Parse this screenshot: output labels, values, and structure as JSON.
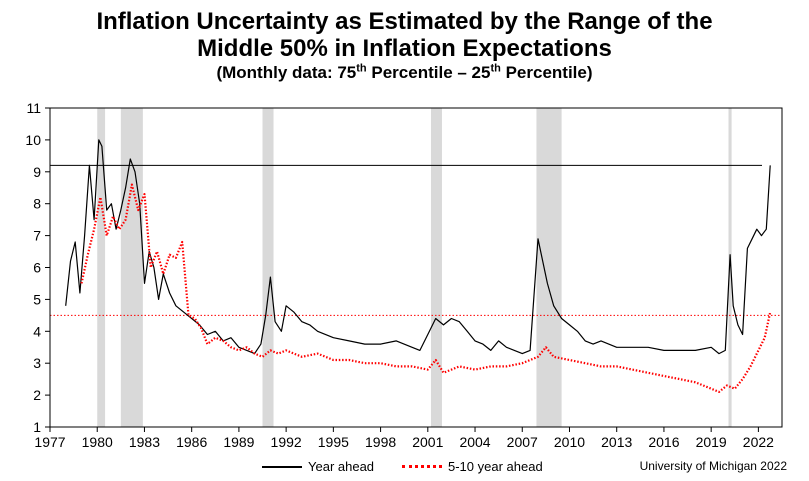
{
  "title": {
    "line1": "Inflation Uncertainty as Estimated by the Range of the",
    "line2": "Middle 50% in Inflation Expectations",
    "sub_prefix": "(Monthly data:  75",
    "sub_sup1": "th",
    "sub_mid": " Percentile – 25",
    "sub_sup2": "th",
    "sub_suffix": " Percentile)"
  },
  "credit": "University of Michigan 2022",
  "chart_data": {
    "type": "line",
    "xlim": [
      1977,
      2023.5
    ],
    "ylim": [
      1,
      11
    ],
    "x_ticks": [
      1977,
      1980,
      1983,
      1986,
      1989,
      1992,
      1995,
      1998,
      2001,
      2004,
      2007,
      2010,
      2013,
      2016,
      2019,
      2022
    ],
    "x_tick_labels": [
      "1977",
      "1980",
      "1983",
      "1986",
      "1989",
      "1992",
      "1995",
      "1998",
      "2001",
      "2004",
      "2007",
      "2010",
      "2013",
      "2016",
      "2019",
      "2022"
    ],
    "y_ticks": [
      1,
      2,
      3,
      4,
      5,
      6,
      7,
      8,
      9,
      10,
      11
    ],
    "y_tick_labels": [
      "1",
      "2",
      "3",
      "4",
      "5",
      "6",
      "7",
      "8",
      "9",
      "10",
      "11"
    ],
    "legend": "bottom",
    "grid": false,
    "recessions": [
      [
        1980.0,
        1980.5
      ],
      [
        1981.5,
        1982.9
      ],
      [
        1990.5,
        1991.2
      ],
      [
        2001.2,
        2001.9
      ],
      [
        2007.9,
        2009.5
      ],
      [
        2020.1,
        2020.3
      ]
    ],
    "reference_lines": [
      {
        "value": 9.2,
        "series": "Year ahead",
        "style": "solid",
        "color": "#000000"
      },
      {
        "value": 4.5,
        "series": "5-10 year ahead",
        "style": "dotted",
        "color": "#ff0000"
      }
    ],
    "series": [
      {
        "name": "Year ahead",
        "color": "#000000",
        "style": "solid",
        "x": [
          1978.0,
          1978.3,
          1978.6,
          1978.9,
          1979.2,
          1979.5,
          1979.8,
          1980.1,
          1980.3,
          1980.6,
          1980.9,
          1981.2,
          1981.5,
          1981.8,
          1982.1,
          1982.4,
          1982.7,
          1983.0,
          1983.3,
          1983.6,
          1983.9,
          1984.2,
          1984.6,
          1985.0,
          1985.5,
          1986.0,
          1986.5,
          1987.0,
          1987.5,
          1988.0,
          1988.5,
          1989.0,
          1989.5,
          1990.0,
          1990.4,
          1990.7,
          1991.0,
          1991.3,
          1991.7,
          1992.0,
          1992.5,
          1993.0,
          1993.5,
          1994.0,
          1995.0,
          1996.0,
          1997.0,
          1998.0,
          1999.0,
          2000.0,
          2000.5,
          2001.0,
          2001.5,
          2002.0,
          2002.5,
          2003.0,
          2003.5,
          2004.0,
          2004.5,
          2005.0,
          2005.5,
          2006.0,
          2006.5,
          2007.0,
          2007.5,
          2008.0,
          2008.3,
          2008.6,
          2009.0,
          2009.5,
          2010.0,
          2010.5,
          2011.0,
          2011.5,
          2012.0,
          2013.0,
          2014.0,
          2015.0,
          2016.0,
          2017.0,
          2018.0,
          2019.0,
          2019.5,
          2019.9,
          2020.2,
          2020.4,
          2020.7,
          2021.0,
          2021.3,
          2021.6,
          2021.9,
          2022.2,
          2022.5,
          2022.75
        ],
        "values": [
          4.8,
          6.2,
          6.8,
          5.2,
          7.0,
          9.2,
          7.5,
          10.0,
          9.8,
          7.8,
          8.0,
          7.2,
          7.8,
          8.5,
          9.4,
          9.0,
          8.0,
          5.5,
          6.5,
          6.0,
          5.0,
          5.8,
          5.2,
          4.8,
          4.6,
          4.4,
          4.2,
          3.9,
          4.0,
          3.7,
          3.8,
          3.5,
          3.4,
          3.3,
          3.6,
          4.5,
          5.7,
          4.3,
          4.0,
          4.8,
          4.6,
          4.3,
          4.2,
          4.0,
          3.8,
          3.7,
          3.6,
          3.6,
          3.7,
          3.5,
          3.4,
          3.9,
          4.4,
          4.2,
          4.4,
          4.3,
          4.0,
          3.7,
          3.6,
          3.4,
          3.7,
          3.5,
          3.4,
          3.3,
          3.4,
          6.9,
          6.2,
          5.5,
          4.8,
          4.4,
          4.2,
          4.0,
          3.7,
          3.6,
          3.7,
          3.5,
          3.5,
          3.5,
          3.4,
          3.4,
          3.4,
          3.5,
          3.3,
          3.4,
          6.4,
          4.8,
          4.2,
          3.9,
          6.6,
          6.9,
          7.2,
          7.0,
          7.2,
          9.2
        ]
      },
      {
        "name": "5-10 year ahead",
        "color": "#ff0000",
        "style": "dotted",
        "x": [
          1979.0,
          1979.4,
          1979.8,
          1980.2,
          1980.6,
          1981.0,
          1981.4,
          1981.8,
          1982.2,
          1982.6,
          1983.0,
          1983.4,
          1983.8,
          1984.2,
          1984.6,
          1985.0,
          1985.4,
          1985.8,
          1986.2,
          1986.6,
          1987.0,
          1987.5,
          1988.0,
          1988.5,
          1989.0,
          1989.5,
          1990.0,
          1990.5,
          1991.0,
          1991.5,
          1992.0,
          1993.0,
          1994.0,
          1995.0,
          1996.0,
          1997.0,
          1998.0,
          1999.0,
          2000.0,
          2001.0,
          2001.5,
          2002.0,
          2002.5,
          2003.0,
          2004.0,
          2005.0,
          2006.0,
          2007.0,
          2008.0,
          2008.5,
          2009.0,
          2010.0,
          2011.0,
          2012.0,
          2013.0,
          2014.0,
          2015.0,
          2016.0,
          2017.0,
          2018.0,
          2019.0,
          2019.5,
          2020.0,
          2020.5,
          2021.0,
          2021.5,
          2022.0,
          2022.4,
          2022.75
        ],
        "values": [
          5.5,
          6.4,
          7.2,
          8.2,
          7.0,
          7.6,
          7.2,
          7.5,
          8.6,
          7.8,
          8.3,
          6.0,
          6.5,
          5.8,
          6.4,
          6.3,
          6.8,
          4.5,
          4.4,
          4.1,
          3.6,
          3.8,
          3.7,
          3.5,
          3.4,
          3.5,
          3.3,
          3.2,
          3.4,
          3.3,
          3.4,
          3.2,
          3.3,
          3.1,
          3.1,
          3.0,
          3.0,
          2.9,
          2.9,
          2.8,
          3.1,
          2.7,
          2.8,
          2.9,
          2.8,
          2.9,
          2.9,
          3.0,
          3.2,
          3.5,
          3.2,
          3.1,
          3.0,
          2.9,
          2.9,
          2.8,
          2.7,
          2.6,
          2.5,
          2.4,
          2.2,
          2.1,
          2.3,
          2.2,
          2.5,
          2.9,
          3.4,
          3.8,
          4.6
        ]
      }
    ]
  }
}
